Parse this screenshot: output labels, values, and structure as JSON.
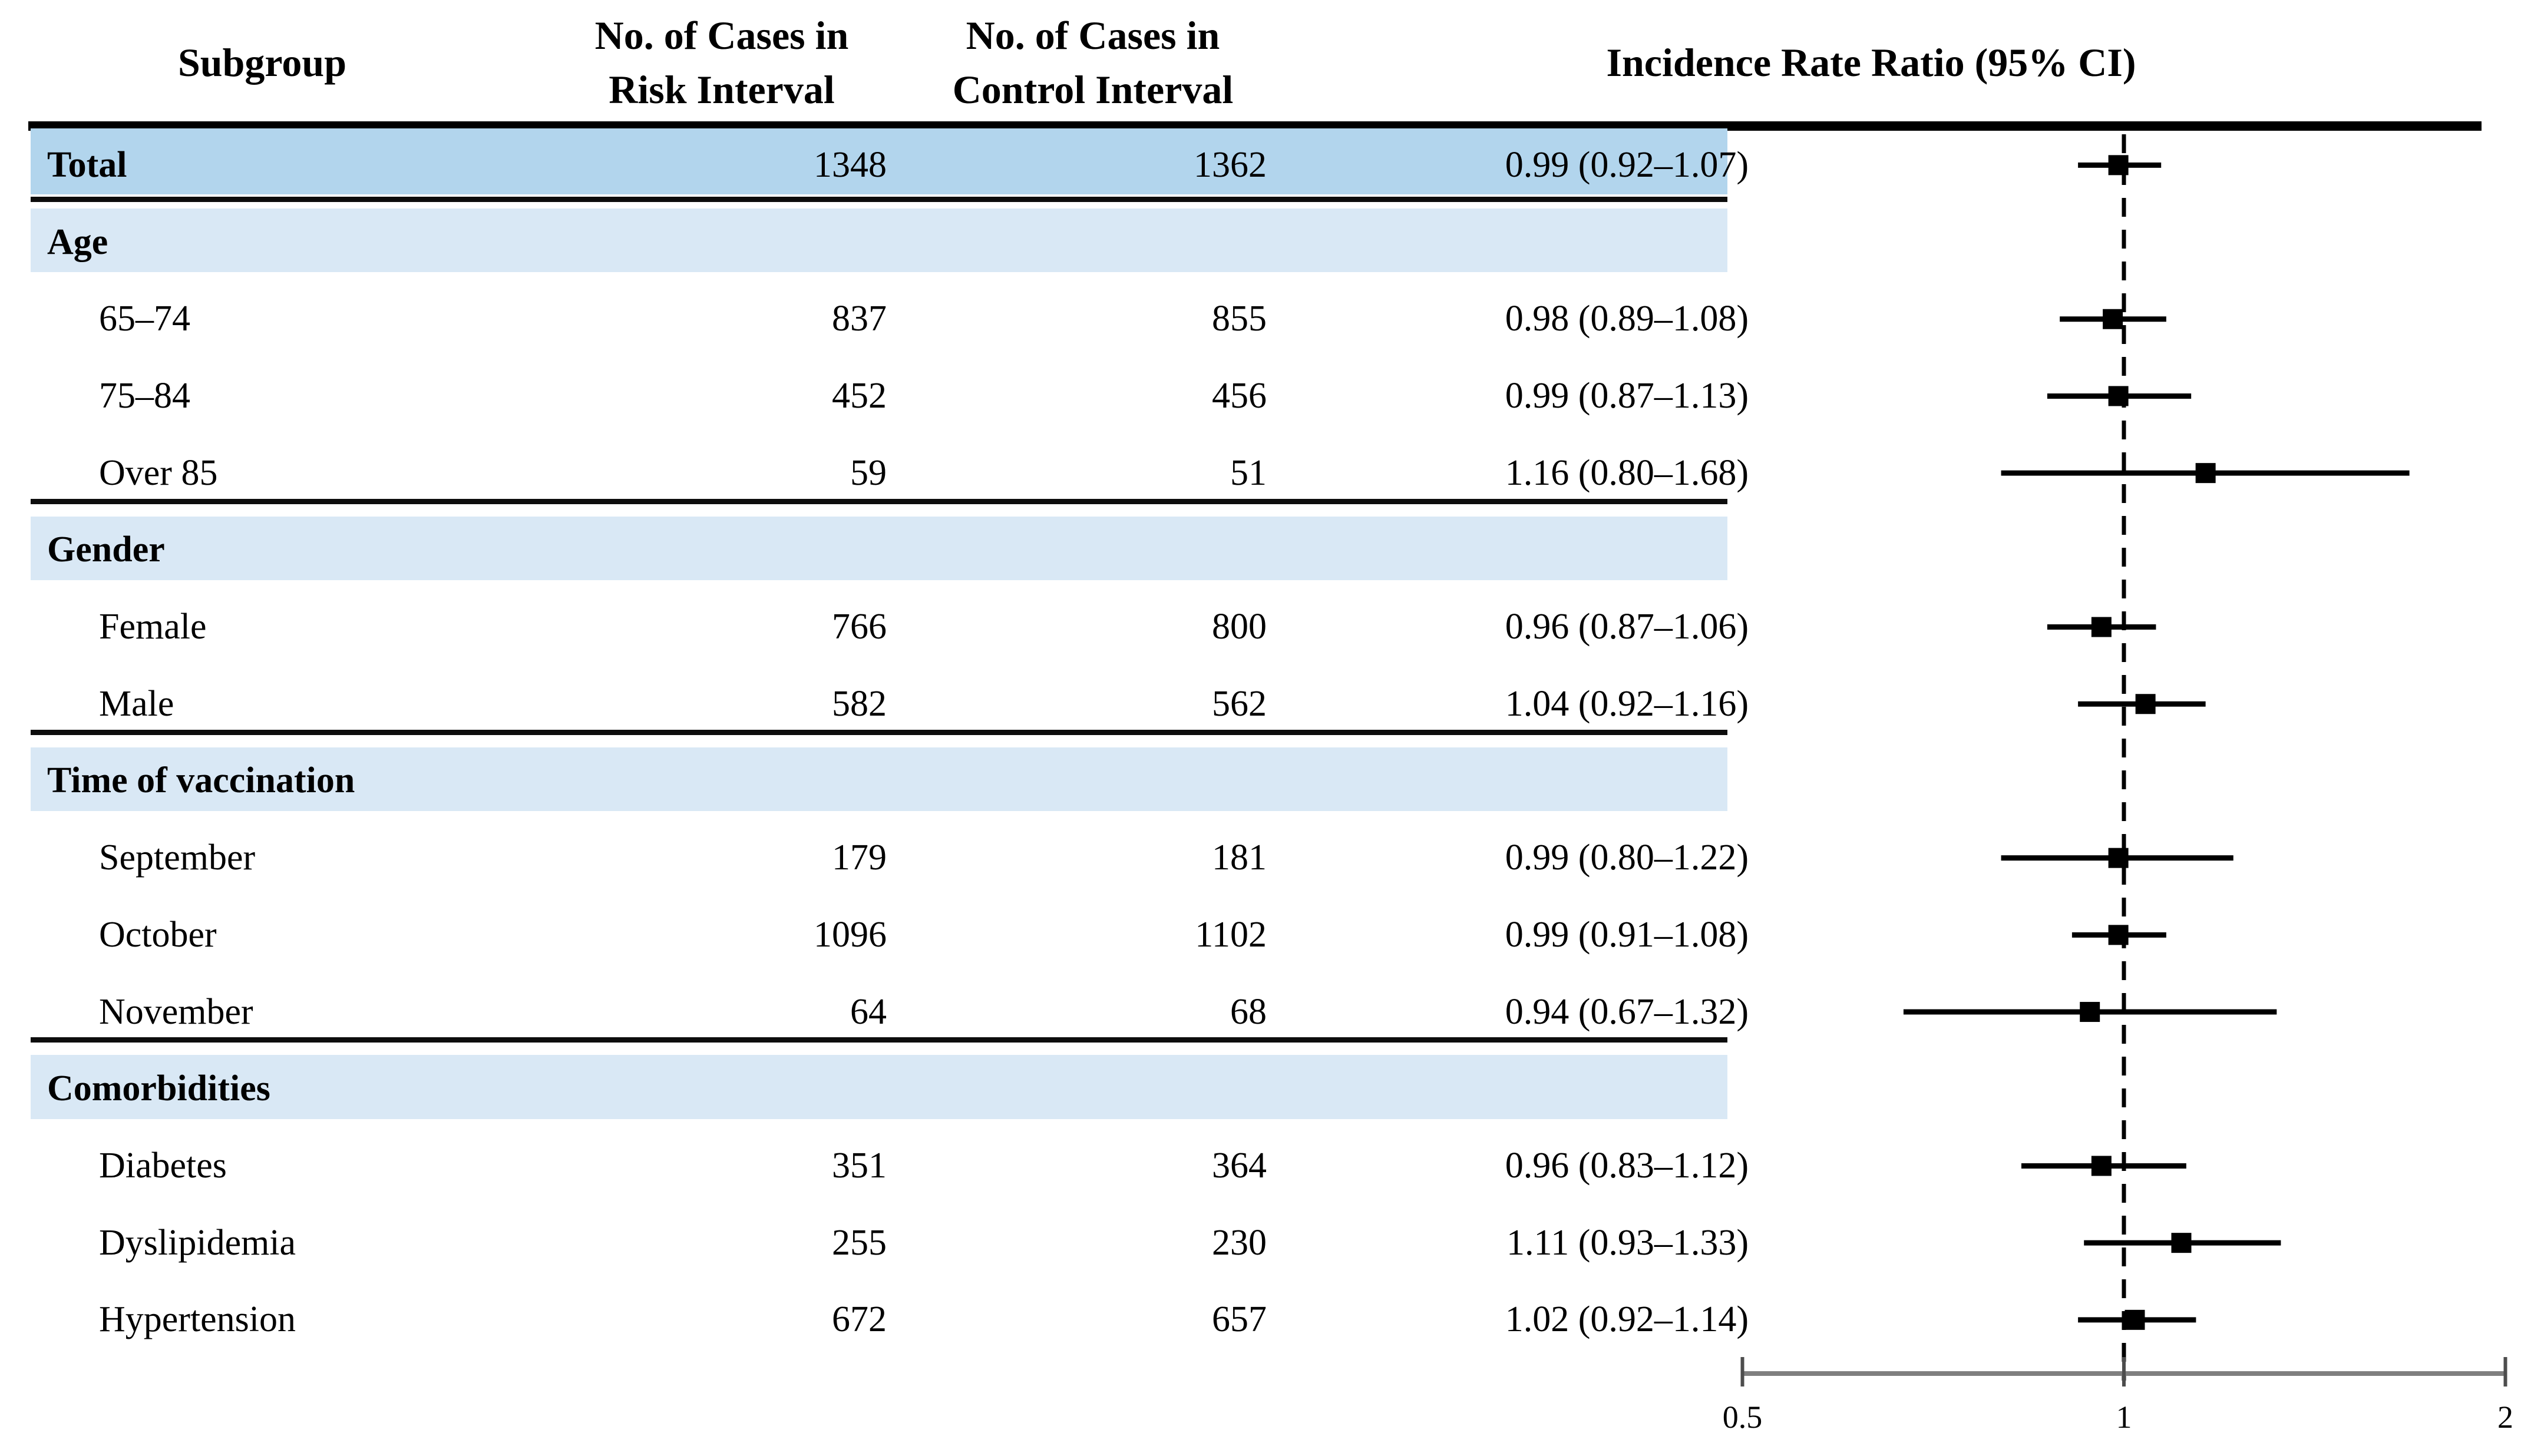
{
  "header": {
    "subgroup": "Subgroup",
    "risk_interval": [
      "No. of Cases in",
      "Risk Interval"
    ],
    "control_interval": [
      "No. of Cases in",
      "Control Interval"
    ],
    "irr": "Incidence Rate Ratio (95% CI)"
  },
  "rows": [
    {
      "type": "total",
      "label": "Total",
      "risk": "1348",
      "control": "1362",
      "irr": "0.99 (0.92–1.07)",
      "est": 0.99,
      "lo": 0.92,
      "hi": 1.07
    },
    {
      "type": "section",
      "label": "Age"
    },
    {
      "type": "item",
      "label": "65–74",
      "risk": "837",
      "control": "855",
      "irr": "0.98 (0.89–1.08)",
      "est": 0.98,
      "lo": 0.89,
      "hi": 1.08
    },
    {
      "type": "item",
      "label": "75–84",
      "risk": "452",
      "control": "456",
      "irr": "0.99 (0.87–1.13)",
      "est": 0.99,
      "lo": 0.87,
      "hi": 1.13
    },
    {
      "type": "item",
      "label": "Over 85",
      "risk": "59",
      "control": "51",
      "irr": "1.16 (0.80–1.68)",
      "est": 1.16,
      "lo": 0.8,
      "hi": 1.68
    },
    {
      "type": "section",
      "label": "Gender"
    },
    {
      "type": "item",
      "label": "Female",
      "risk": "766",
      "control": "800",
      "irr": "0.96 (0.87–1.06)",
      "est": 0.96,
      "lo": 0.87,
      "hi": 1.06
    },
    {
      "type": "item",
      "label": "Male",
      "risk": "582",
      "control": "562",
      "irr": "1.04 (0.92–1.16)",
      "est": 1.04,
      "lo": 0.92,
      "hi": 1.16
    },
    {
      "type": "section",
      "label": "Time of vaccination"
    },
    {
      "type": "item",
      "label": "September",
      "risk": "179",
      "control": "181",
      "irr": "0.99 (0.80–1.22)",
      "est": 0.99,
      "lo": 0.8,
      "hi": 1.22
    },
    {
      "type": "item",
      "label": "October",
      "risk": "1096",
      "control": "1102",
      "irr": "0.99 (0.91–1.08)",
      "est": 0.99,
      "lo": 0.91,
      "hi": 1.08
    },
    {
      "type": "item",
      "label": "November",
      "risk": "64",
      "control": "68",
      "irr": "0.94 (0.67–1.32)",
      "est": 0.94,
      "lo": 0.67,
      "hi": 1.32
    },
    {
      "type": "section",
      "label": "Comorbidities"
    },
    {
      "type": "item",
      "label": "Diabetes",
      "risk": "351",
      "control": "364",
      "irr": "0.96 (0.83–1.12)",
      "est": 0.96,
      "lo": 0.83,
      "hi": 1.12
    },
    {
      "type": "item",
      "label": "Dyslipidemia",
      "risk": "255",
      "control": "230",
      "irr": "1.11 (0.93–1.33)",
      "est": 1.11,
      "lo": 0.93,
      "hi": 1.33
    },
    {
      "type": "item",
      "label": "Hypertension",
      "risk": "672",
      "control": "657",
      "irr": "1.02 (0.92–1.14)",
      "est": 1.02,
      "lo": 0.92,
      "hi": 1.14
    }
  ],
  "axis": {
    "tick_labels": [
      "0.5",
      "1",
      "2"
    ],
    "tick_values": [
      0.5,
      1,
      2
    ],
    "scale": "log",
    "reference_value": 1
  },
  "colors": {
    "total_band": "#b2d5ed",
    "section_band": "#d9e8f5",
    "marker": "#000000",
    "ci_line": "#000000",
    "axis_line": "#7f7f7f",
    "rule": "#000000",
    "text": "#000000"
  },
  "chart_data": {
    "type": "forest",
    "title": "Incidence Rate Ratio (95% CI)",
    "x_scale": "log",
    "x_ticks": [
      0.5,
      1,
      2
    ],
    "xlim": [
      0.5,
      2
    ],
    "reference_line": 1,
    "grid": false,
    "series": [
      {
        "subgroup": "Total",
        "group": null,
        "cases_risk_interval": 1348,
        "cases_control_interval": 1362,
        "irr": 0.99,
        "ci_low": 0.92,
        "ci_high": 1.07
      },
      {
        "subgroup": "65–74",
        "group": "Age",
        "cases_risk_interval": 837,
        "cases_control_interval": 855,
        "irr": 0.98,
        "ci_low": 0.89,
        "ci_high": 1.08
      },
      {
        "subgroup": "75–84",
        "group": "Age",
        "cases_risk_interval": 452,
        "cases_control_interval": 456,
        "irr": 0.99,
        "ci_low": 0.87,
        "ci_high": 1.13
      },
      {
        "subgroup": "Over 85",
        "group": "Age",
        "cases_risk_interval": 59,
        "cases_control_interval": 51,
        "irr": 1.16,
        "ci_low": 0.8,
        "ci_high": 1.68
      },
      {
        "subgroup": "Female",
        "group": "Gender",
        "cases_risk_interval": 766,
        "cases_control_interval": 800,
        "irr": 0.96,
        "ci_low": 0.87,
        "ci_high": 1.06
      },
      {
        "subgroup": "Male",
        "group": "Gender",
        "cases_risk_interval": 582,
        "cases_control_interval": 562,
        "irr": 1.04,
        "ci_low": 0.92,
        "ci_high": 1.16
      },
      {
        "subgroup": "September",
        "group": "Time of vaccination",
        "cases_risk_interval": 179,
        "cases_control_interval": 181,
        "irr": 0.99,
        "ci_low": 0.8,
        "ci_high": 1.22
      },
      {
        "subgroup": "October",
        "group": "Time of vaccination",
        "cases_risk_interval": 1096,
        "cases_control_interval": 1102,
        "irr": 0.99,
        "ci_low": 0.91,
        "ci_high": 1.08
      },
      {
        "subgroup": "November",
        "group": "Time of vaccination",
        "cases_risk_interval": 64,
        "cases_control_interval": 68,
        "irr": 0.94,
        "ci_low": 0.67,
        "ci_high": 1.32
      },
      {
        "subgroup": "Diabetes",
        "group": "Comorbidities",
        "cases_risk_interval": 351,
        "cases_control_interval": 364,
        "irr": 0.96,
        "ci_low": 0.83,
        "ci_high": 1.12
      },
      {
        "subgroup": "Dyslipidemia",
        "group": "Comorbidities",
        "cases_risk_interval": 255,
        "cases_control_interval": 230,
        "irr": 1.11,
        "ci_low": 0.93,
        "ci_high": 1.33
      },
      {
        "subgroup": "Hypertension",
        "group": "Comorbidities",
        "cases_risk_interval": 672,
        "cases_control_interval": 657,
        "irr": 1.02,
        "ci_low": 0.92,
        "ci_high": 1.14
      }
    ]
  }
}
